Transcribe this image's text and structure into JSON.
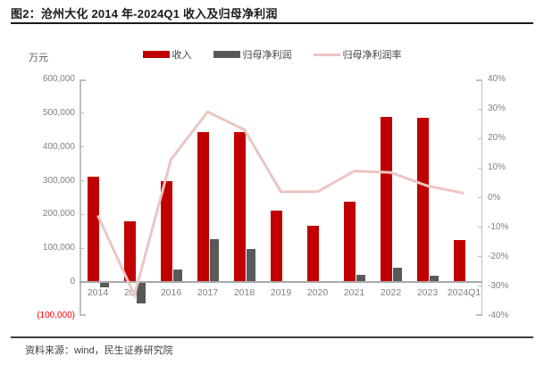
{
  "figure": {
    "title": "图2：沧州大化 2014 年-2024Q1 收入及归母净利润",
    "unit_label": "万元",
    "source": "资料来源：wind，民生证券研究院"
  },
  "colors": {
    "revenue_bar": "#c00000",
    "profit_bar": "#595959",
    "margin_line": "#ecc5c3",
    "negative_axis_label": "#ff0000"
  },
  "legend": {
    "items": [
      {
        "label": "收入",
        "type": "bar",
        "color": "#c00000"
      },
      {
        "label": "归母净利润",
        "type": "bar",
        "color": "#595959"
      },
      {
        "label": "归母净利润率",
        "type": "line",
        "color": "#ecc5c3"
      }
    ]
  },
  "chart_data": {
    "type": "bar",
    "subtype": "bar+line combo, dual axis",
    "title": "沧州大化 2014 年-2024Q1 收入及归母净利润",
    "categories": [
      "2014",
      "2015",
      "2016",
      "2017",
      "2018",
      "2019",
      "2020",
      "2021",
      "2022",
      "2023",
      "2024Q1"
    ],
    "series": [
      {
        "name": "收入",
        "type": "bar",
        "axis": "left",
        "color": "#c00000",
        "values": [
          312000,
          181000,
          298000,
          443000,
          444000,
          211000,
          166000,
          238000,
          489000,
          486000,
          124000
        ]
      },
      {
        "name": "归母净利润",
        "type": "bar",
        "axis": "left",
        "color": "#595959",
        "values": [
          -15000,
          -62000,
          38000,
          128000,
          98000,
          3000,
          1500,
          22000,
          42000,
          18000,
          1000
        ]
      },
      {
        "name": "归母净利润率",
        "type": "line",
        "axis": "right",
        "color": "#ecc5c3",
        "values": [
          -6,
          -33,
          13,
          29,
          23,
          2,
          2,
          9,
          8.5,
          4,
          1.5
        ]
      }
    ],
    "left_axis": {
      "unit": "万元",
      "min": -100000,
      "max": 600000,
      "ticks": [
        "600,000",
        "500,000",
        "400,000",
        "300,000",
        "200,000",
        "100,000",
        "0",
        "(100,000)"
      ]
    },
    "right_axis": {
      "unit": "%",
      "min": -40,
      "max": 40,
      "ticks": [
        "40%",
        "30%",
        "20%",
        "10%",
        "0%",
        "-10%",
        "-20%",
        "-30%",
        "-40%"
      ]
    },
    "grid": false,
    "legend_position": "top"
  }
}
